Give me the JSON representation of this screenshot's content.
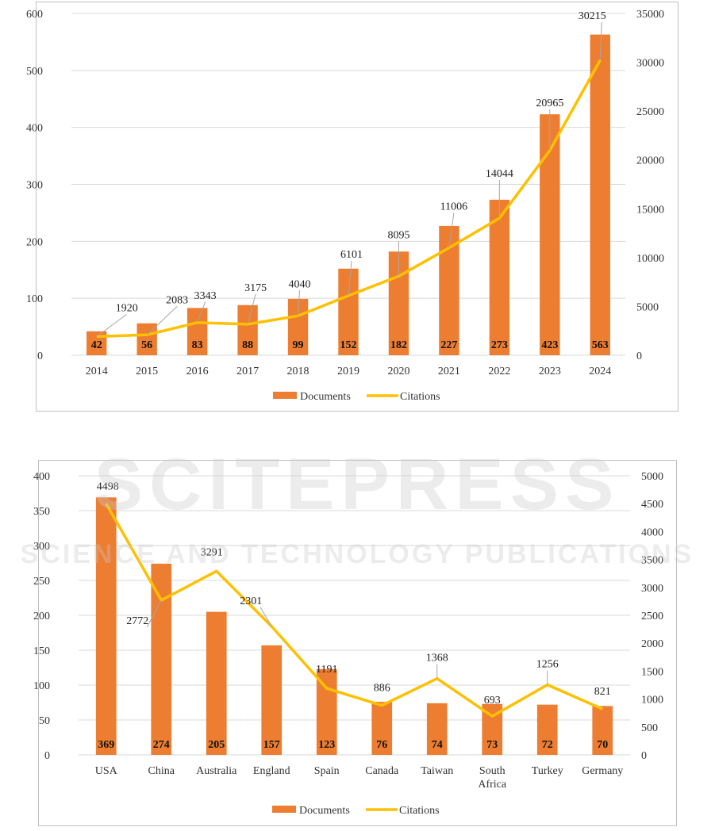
{
  "chart_data": [
    {
      "type": "bar",
      "categories": [
        "2014",
        "2015",
        "2016",
        "2017",
        "2018",
        "2019",
        "2020",
        "2021",
        "2022",
        "2023",
        "2024"
      ],
      "series": [
        {
          "name": "Documents",
          "values": [
            42,
            56,
            83,
            88,
            99,
            152,
            182,
            227,
            273,
            423,
            563
          ],
          "axis": "left",
          "color": "#ed7d31"
        },
        {
          "name": "Citations",
          "values": [
            1920,
            2083,
            3343,
            3175,
            4040,
            6101,
            8095,
            11006,
            14044,
            20965,
            30215
          ],
          "axis": "right",
          "type": "line",
          "color": "#ffc000"
        }
      ],
      "ylim": [
        0,
        600
      ],
      "y_ticks": [
        "0",
        "100",
        "200",
        "300",
        "400",
        "500",
        "600"
      ],
      "y2lim": [
        0,
        35000
      ],
      "y2_ticks": [
        "0",
        "5000",
        "10000",
        "15000",
        "20000",
        "25000",
        "30000",
        "35000"
      ],
      "grid": true,
      "legend": "bottom"
    },
    {
      "type": "bar",
      "categories": [
        "USA",
        "China",
        "Australia",
        "England",
        "Spain",
        "Canada",
        "Taiwan",
        "South Africa",
        "Turkey",
        "Germany"
      ],
      "category_lines": [
        [
          "USA"
        ],
        [
          "China"
        ],
        [
          "Australia"
        ],
        [
          "England"
        ],
        [
          "Spain"
        ],
        [
          "Canada"
        ],
        [
          "Taiwan"
        ],
        [
          "South",
          "Africa"
        ],
        [
          "Turkey"
        ],
        [
          "Germany"
        ]
      ],
      "series": [
        {
          "name": "Documents",
          "values": [
            369,
            274,
            205,
            157,
            123,
            76,
            74,
            73,
            72,
            70
          ],
          "axis": "left",
          "color": "#ed7d31"
        },
        {
          "name": "Citations",
          "values": [
            4498,
            2772,
            3291,
            2301,
            1191,
            886,
            1368,
            693,
            1256,
            821
          ],
          "axis": "right",
          "type": "line",
          "color": "#ffc000"
        }
      ],
      "ylim": [
        0,
        400
      ],
      "y_ticks": [
        "0",
        "50",
        "100",
        "150",
        "200",
        "250",
        "300",
        "350",
        "400"
      ],
      "y2lim": [
        0,
        5000
      ],
      "y2_ticks": [
        "0",
        "500",
        "1000",
        "1500",
        "2000",
        "2500",
        "3000",
        "3500",
        "4000",
        "4500",
        "5000"
      ],
      "grid": true,
      "legend": "bottom"
    }
  ],
  "watermark": {
    "line1": "SCITEPRESS",
    "line2": "SCIENCE AND TECHNOLOGY PUBLICATIONS"
  }
}
